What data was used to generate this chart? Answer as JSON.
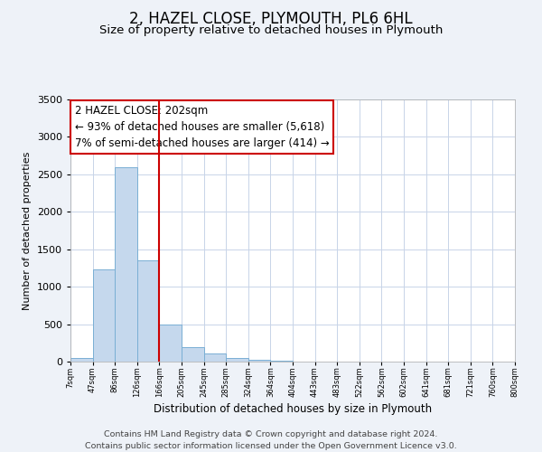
{
  "title": "2, HAZEL CLOSE, PLYMOUTH, PL6 6HL",
  "subtitle": "Size of property relative to detached houses in Plymouth",
  "xlabel": "Distribution of detached houses by size in Plymouth",
  "ylabel": "Number of detached properties",
  "bar_values": [
    50,
    1230,
    2590,
    1350,
    500,
    195,
    110,
    50,
    25,
    15,
    5,
    0,
    0,
    0,
    0,
    0,
    0,
    0,
    0,
    0
  ],
  "bin_labels": [
    "7sqm",
    "47sqm",
    "86sqm",
    "126sqm",
    "166sqm",
    "205sqm",
    "245sqm",
    "285sqm",
    "324sqm",
    "364sqm",
    "404sqm",
    "443sqm",
    "483sqm",
    "522sqm",
    "562sqm",
    "602sqm",
    "641sqm",
    "681sqm",
    "721sqm",
    "760sqm",
    "800sqm"
  ],
  "bar_color": "#c5d8ed",
  "bar_edge_color": "#7aafd4",
  "vline_color": "#cc0000",
  "annotation_text": "2 HAZEL CLOSE: 202sqm\n← 93% of detached houses are smaller (5,618)\n7% of semi-detached houses are larger (414) →",
  "annotation_box_color": "#ffffff",
  "annotation_box_edge_color": "#cc0000",
  "ylim": [
    0,
    3500
  ],
  "yticks": [
    0,
    500,
    1000,
    1500,
    2000,
    2500,
    3000,
    3500
  ],
  "footer_line1": "Contains HM Land Registry data © Crown copyright and database right 2024.",
  "footer_line2": "Contains public sector information licensed under the Open Government Licence v3.0.",
  "bg_color": "#eef2f8",
  "plot_bg_color": "#ffffff",
  "title_fontsize": 12,
  "subtitle_fontsize": 9.5,
  "annotation_fontsize": 8.5,
  "footer_fontsize": 6.8,
  "vline_bar_index": 4
}
